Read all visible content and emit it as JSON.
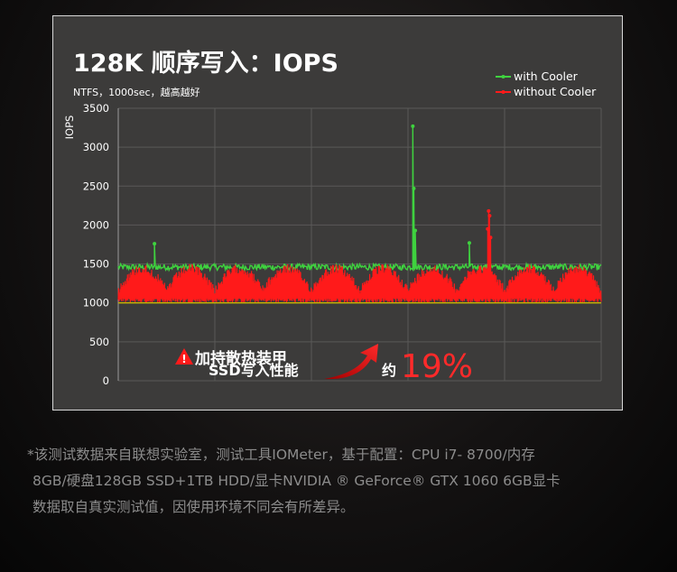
{
  "chart_data": {
    "type": "line",
    "title": "128K 顺序写入：IOPS",
    "subtitle": "NTFS，1000sec，越高越好",
    "ylabel": "IOPS",
    "xlabel": "",
    "ylim": [
      0,
      3500
    ],
    "yticks": [
      "0",
      "500",
      "1000",
      "1500",
      "2000",
      "2500",
      "3000",
      "3500"
    ],
    "xlim": [
      0,
      1000
    ],
    "grid": true,
    "legend_position": "top-right",
    "colors": {
      "with_cooler": "#3fd23f",
      "without_cooler": "#ff1a1a"
    },
    "series": [
      {
        "name": "with Cooler",
        "baseline": 1460,
        "band": [
          1420,
          1500
        ],
        "spikes": [
          [
            75,
            1760
          ],
          [
            610,
            3270
          ],
          [
            612,
            2470
          ],
          [
            615,
            1930
          ],
          [
            727,
            1770
          ]
        ]
      },
      {
        "name": "without Cooler",
        "baseline": 1000,
        "band": [
          1000,
          1500
        ],
        "spikes": [
          [
            765,
            1950
          ],
          [
            767,
            2180
          ],
          [
            769,
            2120
          ],
          [
            771,
            1840
          ]
        ]
      }
    ]
  },
  "annotation": {
    "warning": "加持散热装甲",
    "line2": "SSD写入性能",
    "approx": "约",
    "percent": "19%"
  },
  "footnote": [
    "*该测试数据来自联想实验室，测试工具IOMeter，基于配置：CPU i7- 8700/内存",
    "8GB/硬盘128GB SSD+1TB HDD/显卡NVIDIA ® GeForce® GTX 1060 6GB显卡",
    "数据取自真实测试值，因使用环境不同会有所差异。"
  ]
}
